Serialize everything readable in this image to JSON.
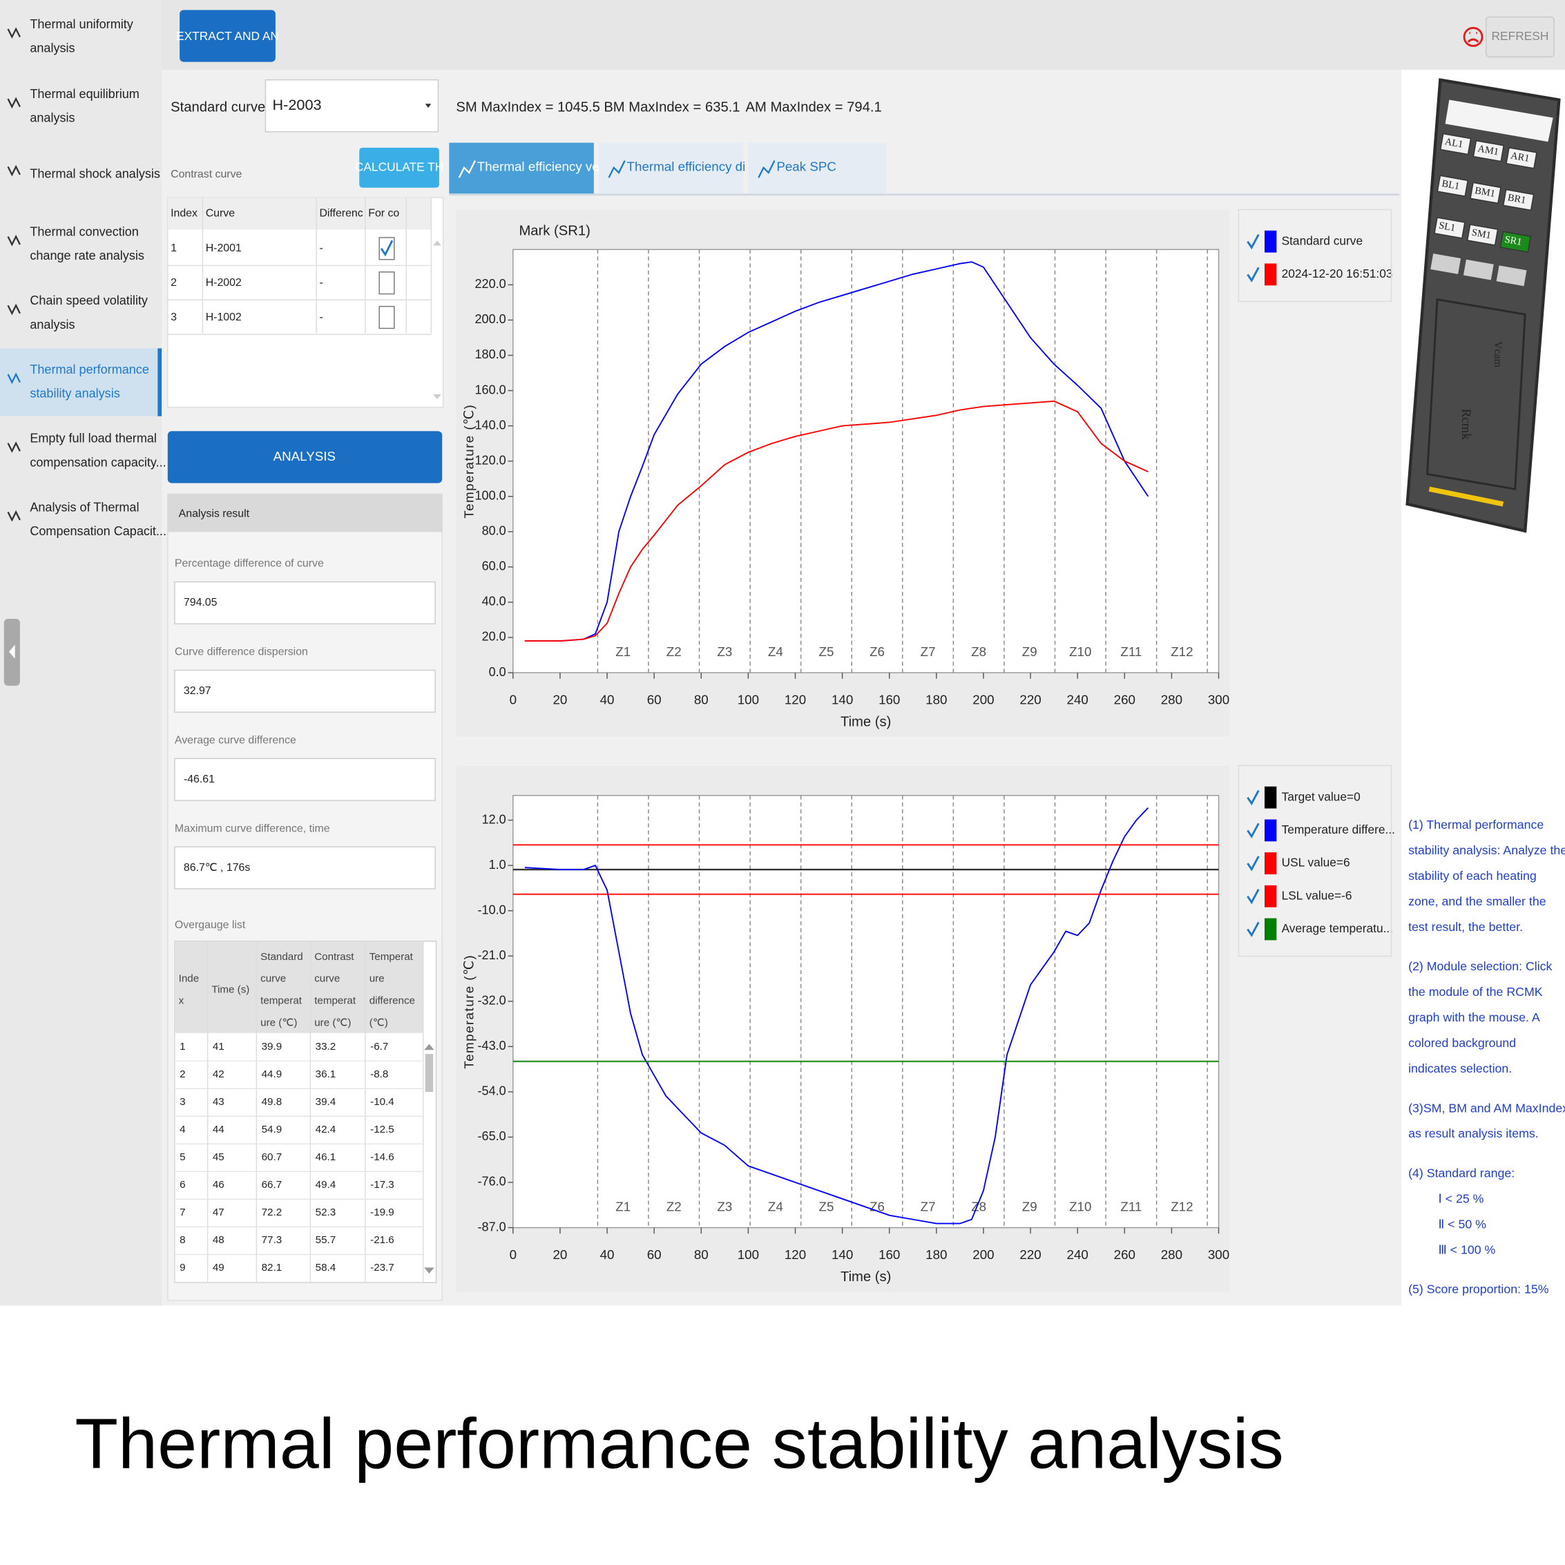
{
  "sidebar": [
    [
      "Thermal uniformity",
      "analysis"
    ],
    [
      "Thermal equilibrium",
      "analysis"
    ],
    [
      "Thermal shock analysis"
    ],
    [
      "Thermal convection",
      "change rate analysis"
    ],
    [
      "Chain speed volatility",
      "analysis"
    ],
    [
      "Thermal performance",
      "stability analysis"
    ],
    [
      "Empty full load thermal",
      "compensation capacity..."
    ],
    [
      "Analysis of Thermal",
      "Compensation Capacit..."
    ]
  ],
  "sidebar_selected": 5,
  "toolbar": {
    "extract": "EXTRACT AND AN",
    "refresh": "REFRESH"
  },
  "standard_curve": {
    "label": "Standard curve",
    "value": "H-2003"
  },
  "max_index": [
    "SM MaxIndex = 1045.5",
    "BM MaxIndex = 635.1",
    "AM MaxIndex = 794.1"
  ],
  "contrast": {
    "label": "Contrast curve",
    "button": "CALCULATE TH",
    "headers": [
      "Index",
      "Curve",
      "Differenc",
      "For co"
    ],
    "rows": [
      [
        "1",
        "H-2001",
        "-"
      ],
      [
        "2",
        "H-2002",
        "-"
      ],
      [
        "3",
        "H-1002",
        "-"
      ]
    ],
    "checked": [
      true,
      false,
      false
    ]
  },
  "analysis_button": "ANALYSIS",
  "result": {
    "title": "Analysis result",
    "fields": [
      {
        "label": "Percentage difference of curve",
        "value": "794.05"
      },
      {
        "label": "Curve difference dispersion",
        "value": "32.97"
      },
      {
        "label": "Average curve difference",
        "value": "-46.61"
      },
      {
        "label": "Maximum curve difference, time",
        "value": "86.7℃ , 176s"
      }
    ]
  },
  "overgauge": {
    "title": "Overgauge list",
    "headers": [
      [
        "Inde",
        "x"
      ],
      [
        "Time (s)"
      ],
      [
        "Standard",
        "curve",
        "temperat",
        "ure (℃)"
      ],
      [
        "Contrast",
        "curve",
        "temperat",
        "ure (℃)"
      ],
      [
        "Temperat",
        "ure",
        "difference",
        "(℃)"
      ]
    ],
    "rows": [
      [
        1,
        41,
        39.9,
        33.2,
        -6.7
      ],
      [
        2,
        42,
        44.9,
        36.1,
        -8.8
      ],
      [
        3,
        43,
        49.8,
        39.4,
        -10.4
      ],
      [
        4,
        44,
        54.9,
        42.4,
        -12.5
      ],
      [
        5,
        45,
        60.7,
        46.1,
        -14.6
      ],
      [
        6,
        46,
        66.7,
        49.4,
        -17.3
      ],
      [
        7,
        47,
        72.2,
        52.3,
        -19.9
      ],
      [
        8,
        48,
        77.3,
        55.7,
        -21.6
      ],
      [
        9,
        49,
        82.1,
        58.4,
        -23.7
      ]
    ]
  },
  "tabs": [
    "Thermal efficiency verif",
    "Thermal efficiency di",
    "Peak SPC"
  ],
  "chart_data": [
    {
      "type": "line",
      "title": "Mark (SR1)",
      "x_label": "Time (s)",
      "y_label": "Temperature (℃)",
      "xlim": [
        0,
        300
      ],
      "xticks": [
        0,
        20,
        40,
        60,
        80,
        100,
        120,
        140,
        160,
        180,
        200,
        220,
        240,
        260,
        280,
        300
      ],
      "ylim": [
        0,
        240
      ],
      "yticks": [
        {
          "value": 0,
          "label": "0.0"
        },
        {
          "value": 20,
          "label": "20.0"
        },
        {
          "value": 40,
          "label": "40.0"
        },
        {
          "value": 60,
          "label": "60.0"
        },
        {
          "value": 80,
          "label": "80.0"
        },
        {
          "value": 100,
          "label": "100.0"
        },
        {
          "value": 120,
          "label": "120.0"
        },
        {
          "value": 140,
          "label": "140.0"
        },
        {
          "value": 160,
          "label": "160.0"
        },
        {
          "value": 180,
          "label": "180.0"
        },
        {
          "value": 200,
          "label": "200.0"
        },
        {
          "value": 220,
          "label": "220.0"
        }
      ],
      "zones": {
        "labels": [
          "Z1",
          "Z2",
          "Z3",
          "Z4",
          "Z5",
          "Z6",
          "Z7",
          "Z8",
          "Z9",
          "Z10",
          "Z11",
          "Z12"
        ],
        "boundaries": [
          36,
          57.6,
          79.2,
          100.8,
          122.4,
          144,
          165.6,
          187.2,
          208.8,
          230.4,
          252,
          273.6,
          295.2
        ]
      },
      "x": [
        5,
        20,
        30,
        35,
        40,
        45,
        50,
        55,
        60,
        70,
        80,
        90,
        100,
        110,
        120,
        130,
        140,
        150,
        160,
        170,
        180,
        190,
        195,
        200,
        210,
        220,
        230,
        240,
        250,
        260,
        270
      ],
      "series": [
        {
          "name": "Standard curve",
          "color": "#0000ff",
          "values": [
            18,
            18,
            19,
            22,
            40,
            80,
            100,
            117,
            135,
            158,
            175,
            185,
            193,
            199,
            205,
            210,
            214,
            218,
            222,
            226,
            229,
            232,
            233,
            230,
            210,
            190,
            175,
            163,
            150,
            120,
            100
          ]
        },
        {
          "name": "2024-12-20 16:51:03",
          "color": "#ff0000",
          "values": [
            18,
            18,
            19,
            21,
            28,
            45,
            60,
            70,
            78,
            95,
            106,
            118,
            125,
            130,
            134,
            137,
            140,
            141,
            142,
            144,
            146,
            149,
            150,
            151,
            152,
            153,
            154,
            148,
            130,
            120,
            114
          ]
        }
      ]
    },
    {
      "type": "line",
      "x_label": "Time (s)",
      "y_label": "Temperature (℃)",
      "xlim": [
        0,
        300
      ],
      "xticks": [
        0,
        20,
        40,
        60,
        80,
        100,
        120,
        140,
        160,
        180,
        200,
        220,
        240,
        260,
        280,
        300
      ],
      "ylim": [
        -87,
        18
      ],
      "yticks": [
        {
          "value": 12,
          "label": "12.0"
        },
        {
          "value": 1,
          "label": "1.0"
        },
        {
          "value": -10,
          "label": "-10.0"
        },
        {
          "value": -21,
          "label": "-21.0"
        },
        {
          "value": -32,
          "label": "-32.0"
        },
        {
          "value": -43,
          "label": "-43.0"
        },
        {
          "value": -54,
          "label": "-54.0"
        },
        {
          "value": -65,
          "label": "-65.0"
        },
        {
          "value": -76,
          "label": "-76.0"
        },
        {
          "value": -87,
          "label": "-87.0"
        }
      ],
      "zones": {
        "labels": [
          "Z1",
          "Z2",
          "Z3",
          "Z4",
          "Z5",
          "Z6",
          "Z7",
          "Z8",
          "Z9",
          "Z10",
          "Z11",
          "Z12"
        ],
        "boundaries": [
          36,
          57.6,
          79.2,
          100.8,
          122.4,
          144,
          165.6,
          187.2,
          208.8,
          230.4,
          252,
          273.6,
          295.2
        ]
      },
      "x": [
        5,
        20,
        30,
        35,
        40,
        45,
        50,
        55,
        60,
        65,
        70,
        80,
        90,
        100,
        120,
        140,
        160,
        170,
        180,
        190,
        195,
        200,
        205,
        210,
        220,
        230,
        235,
        240,
        245,
        250,
        255,
        260,
        265,
        270
      ],
      "series": [
        {
          "name": "Target value=0",
          "color": "#000000",
          "value": 0
        },
        {
          "name": "Temperature differe...",
          "color": "#0000ff",
          "values": [
            0.5,
            0,
            0,
            1,
            -5,
            -20,
            -35,
            -45,
            -50,
            -55,
            -58,
            -64,
            -67,
            -72,
            -76,
            -80,
            -84,
            -85,
            -86,
            -86,
            -85,
            -78,
            -65,
            -45,
            -28,
            -20,
            -15,
            -16,
            -13,
            -5,
            2,
            8,
            12,
            15
          ]
        },
        {
          "name": "USL value=6",
          "color": "#ff0000",
          "value": 6
        },
        {
          "name": "LSL value=-6",
          "color": "#ff0000",
          "value": -6
        },
        {
          "name": "Average temperatu...",
          "color": "#008000",
          "value": -46.61
        }
      ]
    }
  ],
  "rcmk": {
    "modules": [
      "AL1",
      "AM1",
      "AR1",
      "BL1",
      "BM1",
      "BR1",
      "SL1",
      "SM1",
      "SR1"
    ],
    "selected": 8,
    "labels": [
      "Vcam",
      "Rcmk"
    ]
  },
  "notes": [
    [
      "(1) Thermal performance",
      "stability analysis: Analyze the",
      "stability of each heating",
      "zone, and the smaller the",
      "test result, the better."
    ],
    [
      "(2) Module selection: Click",
      "the module of the RCMK",
      "graph with the mouse. A",
      "colored background",
      "indicates selection."
    ],
    [
      "(3)SM, BM and AM MaxIndex",
      "as result analysis items."
    ],
    [
      "(4) Standard range:",
      "Ⅰ < 25 %",
      "Ⅱ < 50 %",
      "Ⅲ < 100 %"
    ],
    [
      "(5) Score proportion: 15%"
    ]
  ],
  "caption": "Thermal performance stability analysis"
}
